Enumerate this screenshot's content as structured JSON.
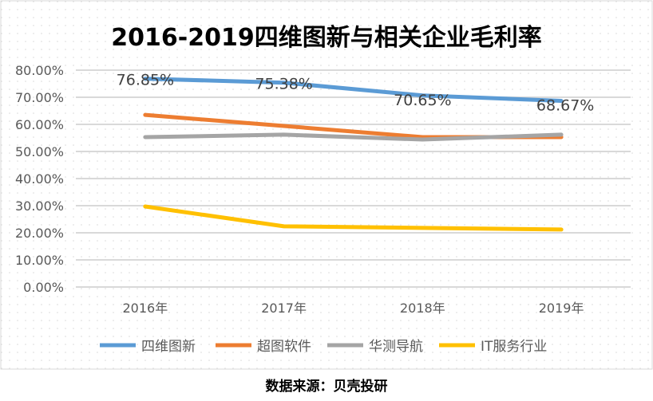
{
  "chart_data": {
    "type": "line",
    "title": "2016-2019四维图新与相关企业毛利率",
    "categories": [
      "2016年",
      "2017年",
      "2018年",
      "2019年"
    ],
    "ylim": [
      0,
      80
    ],
    "yticks": [
      "0.00%",
      "10.00%",
      "20.00%",
      "30.00%",
      "40.00%",
      "50.00%",
      "60.00%",
      "70.00%",
      "80.00%"
    ],
    "grid": true,
    "legend_position": "bottom",
    "series": [
      {
        "name": "四维图新",
        "color": "#5B9BD5",
        "values": [
          76.85,
          75.38,
          70.65,
          68.67
        ],
        "labels": [
          "76.85%",
          "75.38%",
          "70.65%",
          "68.67%"
        ]
      },
      {
        "name": "超图软件",
        "color": "#ED7D31",
        "values": [
          63.5,
          59.4,
          55.3,
          55.3
        ]
      },
      {
        "name": "华测导航",
        "color": "#A5A5A5",
        "values": [
          55.3,
          56.2,
          54.4,
          56.2
        ]
      },
      {
        "name": "IT服务行业",
        "color": "#FFC000",
        "values": [
          29.7,
          22.4,
          21.8,
          21.2
        ]
      }
    ]
  },
  "source": "数据来源：贝壳投研"
}
